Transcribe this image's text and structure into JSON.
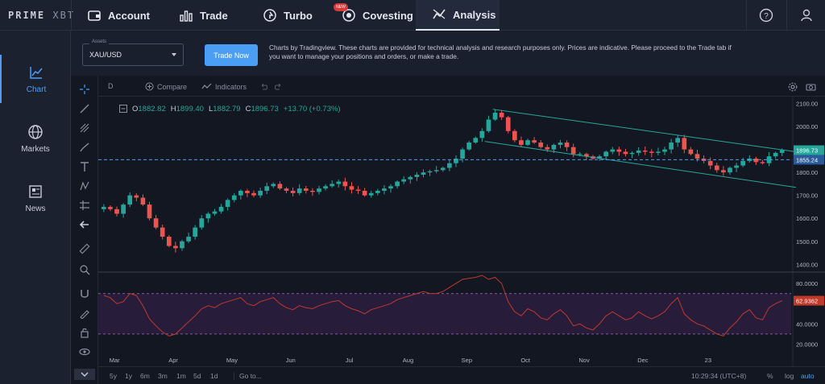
{
  "nav": {
    "logo_bold": "PRIME",
    "logo_thin": "XBT",
    "items": [
      {
        "label": "Account"
      },
      {
        "label": "Trade"
      },
      {
        "label": "Turbo"
      },
      {
        "label": "Covesting",
        "badge": "NEW"
      },
      {
        "label": "Analysis"
      }
    ]
  },
  "sidebar": {
    "items": [
      {
        "label": "Chart"
      },
      {
        "label": "Markets"
      },
      {
        "label": "News"
      }
    ]
  },
  "toolbar": {
    "asset_label": "Assets",
    "asset_value": "XAU/USD",
    "trade_now": "Trade Now",
    "disclaimer": "Charts by Tradingview. These charts are provided for technical analysis and research purposes only. Prices are indicative. Please proceed to the Trade tab if you want to manage your positions and orders, or make a trade."
  },
  "charttop": {
    "interval": "D",
    "compare": "Compare",
    "indicators": "Indicators"
  },
  "ohlc": {
    "o_key": "O",
    "o_val": "1882.82",
    "h_key": "H",
    "h_val": "1899.40",
    "l_key": "L",
    "l_val": "1882.79",
    "c_key": "C",
    "c_val": "1896.73",
    "change": "+13.70 (+0.73%)"
  },
  "bottombar": {
    "timeframes": [
      "5y",
      "1y",
      "6m",
      "3m",
      "1m",
      "5d",
      "1d"
    ],
    "goto": "Go to...",
    "clock": "10:29:34 (UTC+8)",
    "pct": "%",
    "log": "log",
    "auto": "auto"
  },
  "colors": {
    "up": "#26a69a",
    "down": "#ef5350",
    "accent": "#4a9ff5",
    "rsi": "#c0392b"
  },
  "chart_data": {
    "type": "candlestick",
    "x_ticks": [
      "Mar",
      "Apr",
      "May",
      "Jun",
      "Jul",
      "Aug",
      "Sep",
      "Oct",
      "Nov",
      "Dec",
      "23"
    ],
    "price_axis": [
      2100.0,
      2000.0,
      1900.0,
      1800.0,
      1700.0,
      1600.0,
      1500.0,
      1400.0
    ],
    "last_price_label": "1896.73",
    "hline_label": "1855.24",
    "hline_value": 1855.24,
    "rsi_axis": [
      80.0,
      60.0,
      40.0,
      20.0
    ],
    "rsi_labels": [
      "80.0000",
      "40.0000",
      "20.0000"
    ],
    "rsi_last_label": "62.9362",
    "rsi_band": [
      70,
      30
    ],
    "closes": [
      1650,
      1640,
      1620,
      1660,
      1700,
      1690,
      1660,
      1600,
      1560,
      1520,
      1480,
      1470,
      1500,
      1520,
      1560,
      1600,
      1620,
      1630,
      1650,
      1680,
      1700,
      1720,
      1710,
      1700,
      1720,
      1740,
      1750,
      1730,
      1720,
      1710,
      1730,
      1720,
      1715,
      1730,
      1740,
      1750,
      1760,
      1740,
      1725,
      1720,
      1700,
      1710,
      1720,
      1730,
      1740,
      1760,
      1770,
      1780,
      1790,
      1800,
      1805,
      1810,
      1820,
      1840,
      1860,
      1900,
      1930,
      1950,
      1980,
      2030,
      2060,
      2040,
      1980,
      1940,
      1920,
      1940,
      1930,
      1910,
      1900,
      1920,
      1930,
      1910,
      1880,
      1880,
      1870,
      1860,
      1870,
      1890,
      1900,
      1890,
      1880,
      1885,
      1895,
      1890,
      1885,
      1890,
      1900,
      1930,
      1950,
      1900,
      1880,
      1860,
      1850,
      1830,
      1810,
      1800,
      1820,
      1830,
      1850,
      1860,
      1845,
      1840,
      1870,
      1885,
      1896.73
    ],
    "rsi": [
      68,
      66,
      60,
      62,
      70,
      68,
      58,
      45,
      38,
      32,
      28,
      30,
      36,
      42,
      48,
      55,
      58,
      56,
      60,
      62,
      64,
      66,
      60,
      58,
      62,
      64,
      66,
      60,
      56,
      54,
      58,
      56,
      55,
      58,
      60,
      62,
      63,
      58,
      55,
      53,
      50,
      54,
      56,
      58,
      60,
      64,
      66,
      68,
      70,
      72,
      70,
      70,
      72,
      76,
      80,
      84,
      85,
      86,
      88,
      84,
      86,
      80,
      62,
      52,
      48,
      55,
      52,
      46,
      44,
      50,
      54,
      48,
      38,
      40,
      36,
      34,
      40,
      48,
      52,
      48,
      44,
      46,
      52,
      48,
      45,
      48,
      52,
      60,
      66,
      50,
      44,
      40,
      38,
      34,
      30,
      28,
      36,
      42,
      50,
      54,
      46,
      44,
      56,
      60,
      62.94
    ]
  }
}
